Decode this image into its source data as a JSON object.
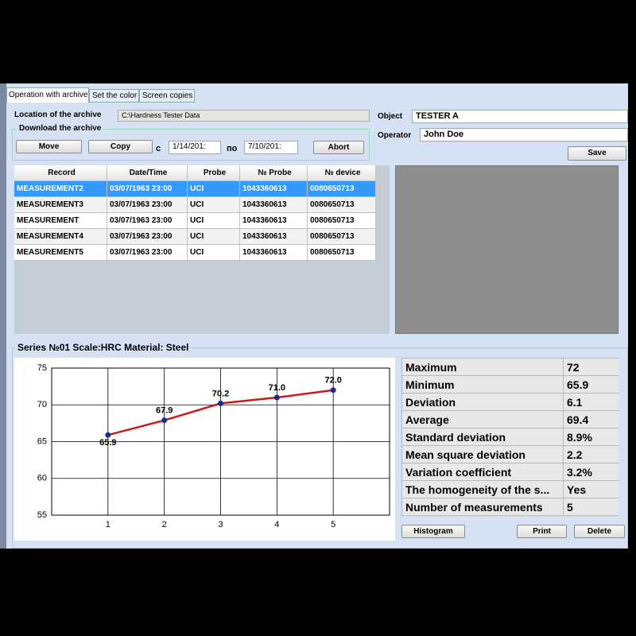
{
  "tabs": [
    "Operation with archive",
    "Set the color",
    "Screen copies"
  ],
  "archive": {
    "location_label": "Location of the archive",
    "location": "C:\\Hardness Tester Data",
    "download_label": "Download the archive",
    "move": "Move",
    "copy": "Copy",
    "from_label": "с",
    "date_from": "1/14/201:",
    "to_label": "по",
    "date_to": "7/10/201:",
    "abort": "Abort"
  },
  "object": {
    "object_label": "Object",
    "object": "TESTER A",
    "operator_label": "Operator",
    "operator": "John Doe",
    "save": "Save"
  },
  "table": {
    "headers": [
      "Record",
      "Date/Time",
      "Probe",
      "№ Probe",
      "№ device"
    ],
    "rows": [
      [
        "MEASUREMENT2",
        "03/07/1963 23:00",
        "UCI",
        "1043360613",
        "0080650713"
      ],
      [
        "MEASUREMENT3",
        "03/07/1963 23:00",
        "UCI",
        "1043360613",
        "0080650713"
      ],
      [
        "MEASUREMENT",
        "03/07/1963 23:00",
        "UCI",
        "1043360613",
        "0080650713"
      ],
      [
        "MEASUREMENT4",
        "03/07/1963 23:00",
        "UCI",
        "1043360613",
        "0080650713"
      ],
      [
        "MEASUREMENT5",
        "03/07/1963 23:00",
        "UCI",
        "1043360613",
        "0080650713"
      ]
    ],
    "selected_row": 0
  },
  "series_title": "Series №01 Scale:HRC Material: Steel",
  "chart_data": {
    "type": "line",
    "x": [
      1,
      2,
      3,
      4,
      5
    ],
    "values": [
      65.9,
      67.9,
      70.2,
      71.0,
      72.0
    ],
    "value_labels": [
      "65.9",
      "67.9",
      "70.2",
      "71.0",
      "72.0"
    ],
    "color": "#cc1a1a",
    "marker_color": "#1a2a8c",
    "xlim": [
      0,
      6
    ],
    "xticks": [
      1,
      2,
      3,
      4,
      5
    ],
    "ylim": [
      55,
      75
    ],
    "yticks": [
      55,
      60,
      65,
      70,
      75
    ],
    "grid": true
  },
  "stats": {
    "rows": [
      [
        "Maximum",
        "72"
      ],
      [
        "Minimum",
        "65.9"
      ],
      [
        "Deviation",
        "6.1"
      ],
      [
        "Average",
        "69.4"
      ],
      [
        "Standard deviation",
        "8.9%"
      ],
      [
        "Mean square deviation",
        "2.2"
      ],
      [
        "Variation coefficient",
        "3.2%"
      ],
      [
        "The homogeneity of the s...",
        "Yes"
      ],
      [
        "Number of measurements",
        "5"
      ]
    ]
  },
  "buttons": {
    "histogram": "Histogram",
    "print": "Print",
    "delete": "Delete"
  }
}
